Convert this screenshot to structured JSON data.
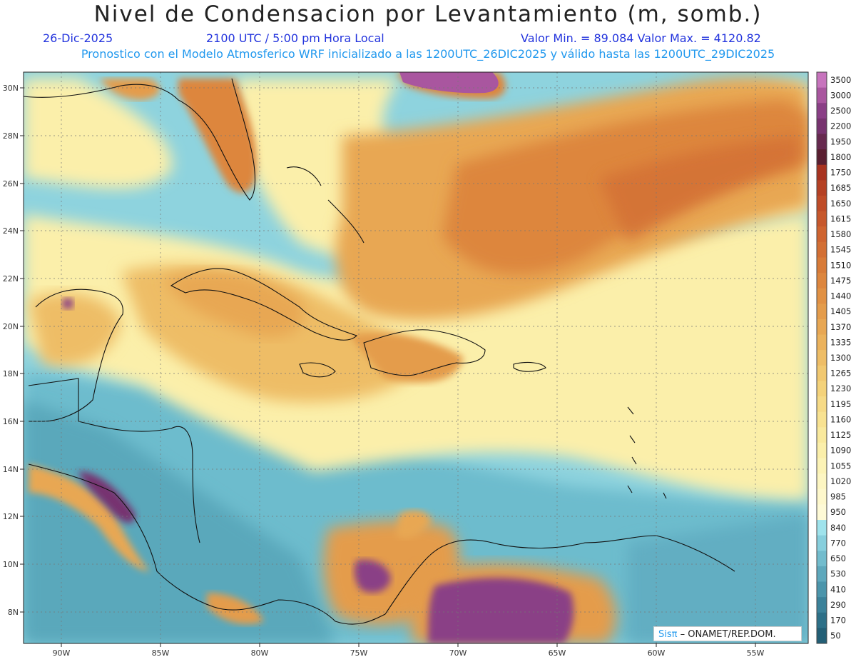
{
  "header": {
    "title": "Nivel de Condensacion por Levantamiento (m, somb.)",
    "date": "26-Dic-2025",
    "time": "2100 UTC / 5:00 pm Hora Local",
    "minmax": "Valor Min. = 89.084  Valor Max. = 4120.82",
    "model_line": "Pronostico con el Modelo Atmosferico WRF inicializado a las 1200UTC_26DIC2025 y válido hasta las  1200UTC_29DIC2025"
  },
  "axes": {
    "lon_labels": [
      "90W",
      "85W",
      "80W",
      "75W",
      "70W",
      "65W",
      "60W",
      "55W"
    ],
    "lat_labels": [
      "30N",
      "28N",
      "26N",
      "24N",
      "22N",
      "20N",
      "18N",
      "16N",
      "14N",
      "12N",
      "10N",
      "8N"
    ]
  },
  "colorbar": {
    "levels": [
      "3500",
      "3000",
      "2500",
      "2200",
      "1950",
      "1800",
      "1750",
      "1685",
      "1650",
      "1615",
      "1580",
      "1545",
      "1510",
      "1475",
      "1440",
      "1405",
      "1370",
      "1335",
      "1300",
      "1265",
      "1230",
      "1195",
      "1160",
      "1125",
      "1090",
      "1055",
      "1020",
      "985",
      "950",
      "840",
      "770",
      "650",
      "530",
      "410",
      "290",
      "170",
      "50"
    ],
    "colors": [
      "#c774bd",
      "#a9569f",
      "#8a3f86",
      "#77336f",
      "#66294f",
      "#5a1f31",
      "#a83320",
      "#b54124",
      "#bf4c28",
      "#c7582c",
      "#cf6430",
      "#d36f34",
      "#d87b38",
      "#dd863e",
      "#e19144",
      "#e49c4b",
      "#e8a753",
      "#ebb25c",
      "#eebd66",
      "#f1c870",
      "#f4d27a",
      "#f6da86",
      "#f8e291",
      "#f9e99d",
      "#fbefaa",
      "#fcf3b6",
      "#fdf6c2",
      "#fef8cc",
      "#fefad6",
      "#9fe3ec",
      "#87cfdd",
      "#72bccd",
      "#5ea8bc",
      "#4b95ab",
      "#3b829a",
      "#2d7088",
      "#235f76"
    ]
  },
  "map_legend": {
    "brand": "Sisπ",
    "org": " – ONAMET/REP.DOM."
  }
}
